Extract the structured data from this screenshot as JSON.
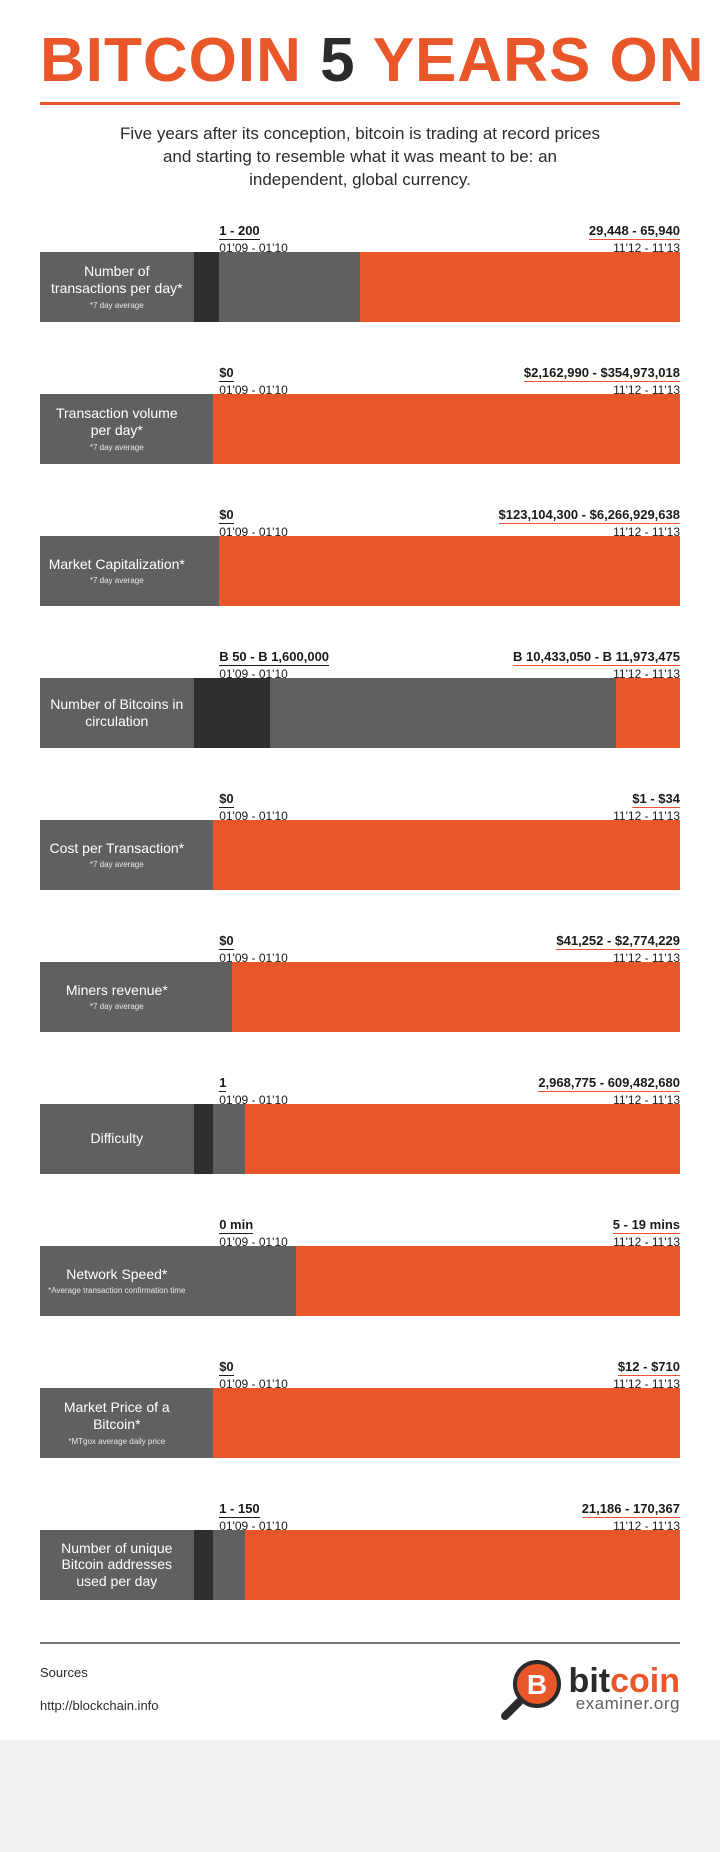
{
  "colors": {
    "orange": "#e8562a",
    "dark": "#2e302f",
    "gray": "#5e615f",
    "text": "#2b2b2b",
    "background": "#ffffff"
  },
  "title": {
    "w1": "BITCOIN",
    "w2": "5",
    "w3": "YEARS ON"
  },
  "subtitle": "Five years after its conception, bitcoin is trading at record prices and starting to resemble what it was meant to be: an independent, global currency.",
  "metrics": [
    {
      "label": "Number of transactions per day*",
      "note": "*7 day average",
      "label_pct": 24,
      "left": {
        "value": "1 - 200",
        "date": "01'09 - 01'10",
        "pos_pct": 28
      },
      "right": {
        "value": "29,448 - 65,940",
        "date": "11'12 - 11'13",
        "pos_pct": 65
      },
      "segments": [
        {
          "color": "dark",
          "start_pct": 24,
          "end_pct": 28
        },
        {
          "color": "gray",
          "start_pct": 28,
          "end_pct": 50
        },
        {
          "color": "orange",
          "start_pct": 50,
          "end_pct": 100
        }
      ]
    },
    {
      "label": "Transaction volume per day*",
      "note": "*7 day average",
      "label_pct": 24,
      "left": {
        "value": "$0",
        "date": "01'09 - 01'10",
        "pos_pct": 28
      },
      "right": {
        "value": "$2,162,990 - $354,973,018",
        "date": "11'12 - 11'13",
        "pos_pct": 55
      },
      "segments": [
        {
          "color": "gray",
          "start_pct": 24,
          "end_pct": 27
        },
        {
          "color": "orange",
          "start_pct": 27,
          "end_pct": 100
        }
      ]
    },
    {
      "label": "Market Capitalization*",
      "note": "*7 day average",
      "label_pct": 24,
      "left": {
        "value": "$0",
        "date": "01'09 - 01'10",
        "pos_pct": 28
      },
      "right": {
        "value": "$123,104,300 - $6,266,929,638",
        "date": "11'12 - 11'13",
        "pos_pct": 51
      },
      "segments": [
        {
          "color": "gray",
          "start_pct": 24,
          "end_pct": 28
        },
        {
          "color": "orange",
          "start_pct": 28,
          "end_pct": 100
        }
      ]
    },
    {
      "label": "Number of Bitcoins in circulation",
      "note": "",
      "label_pct": 24,
      "left": {
        "value": "B 50 - B 1,600,000",
        "date": "01'09 - 01'10",
        "pos_pct": 28
      },
      "right": {
        "value": "B 10,433,050 - B 11,973,475",
        "date": "11'12 - 11'13",
        "pos_pct": 55
      },
      "segments": [
        {
          "color": "dark",
          "start_pct": 24,
          "end_pct": 36
        },
        {
          "color": "gray",
          "start_pct": 36,
          "end_pct": 90
        },
        {
          "color": "orange",
          "start_pct": 90,
          "end_pct": 100
        }
      ]
    },
    {
      "label": "Cost per Transaction*",
      "note": "*7 day average",
      "label_pct": 24,
      "left": {
        "value": "$0",
        "date": "01'09 - 01'10",
        "pos_pct": 28
      },
      "right": {
        "value": "$1 - $34",
        "date": "11'12 - 11'13",
        "pos_pct": 82
      },
      "segments": [
        {
          "color": "gray",
          "start_pct": 24,
          "end_pct": 27
        },
        {
          "color": "orange",
          "start_pct": 27,
          "end_pct": 100
        }
      ]
    },
    {
      "label": "Miners revenue*",
      "note": "*7 day average",
      "label_pct": 24,
      "left": {
        "value": "$0",
        "date": "01'09 - 01'10",
        "pos_pct": 28
      },
      "right": {
        "value": "$41,252 - $2,774,229",
        "date": "11'12 - 11'13",
        "pos_pct": 65
      },
      "segments": [
        {
          "color": "gray",
          "start_pct": 24,
          "end_pct": 30
        },
        {
          "color": "orange",
          "start_pct": 30,
          "end_pct": 100
        }
      ]
    },
    {
      "label": "Difficulty",
      "note": "",
      "label_pct": 24,
      "left": {
        "value": "1",
        "date": "01'09 - 01'10",
        "pos_pct": 28
      },
      "right": {
        "value": "2,968,775 - 609,482,680",
        "date": "11'12 - 11'13",
        "pos_pct": 60
      },
      "segments": [
        {
          "color": "dark",
          "start_pct": 24,
          "end_pct": 27
        },
        {
          "color": "gray",
          "start_pct": 27,
          "end_pct": 32
        },
        {
          "color": "orange",
          "start_pct": 32,
          "end_pct": 100
        }
      ]
    },
    {
      "label": "Network Speed*",
      "note": "*Average transaction confirmation time",
      "label_pct": 24,
      "left": {
        "value": "0 min",
        "date": "01'09 - 01'10",
        "pos_pct": 28
      },
      "right": {
        "value": "5 - 19 mins",
        "date": "11'12 - 11'13",
        "pos_pct": 82
      },
      "segments": [
        {
          "color": "gray",
          "start_pct": 24,
          "end_pct": 40
        },
        {
          "color": "orange",
          "start_pct": 40,
          "end_pct": 100
        }
      ]
    },
    {
      "label": "Market Price of a Bitcoin*",
      "note": "*MTgox average daily price",
      "label_pct": 24,
      "left": {
        "value": "$0",
        "date": "01'09 - 01'10",
        "pos_pct": 28
      },
      "right": {
        "value": "$12 - $710",
        "date": "11'12 - 11'13",
        "pos_pct": 82
      },
      "segments": [
        {
          "color": "gray",
          "start_pct": 24,
          "end_pct": 27
        },
        {
          "color": "orange",
          "start_pct": 27,
          "end_pct": 100
        }
      ]
    },
    {
      "label": "Number of unique Bitcoin addresses used per day",
      "note": "",
      "label_pct": 24,
      "left": {
        "value": "1 - 150",
        "date": "01'09 - 01'10",
        "pos_pct": 28
      },
      "right": {
        "value": "21,186 - 170,367",
        "date": "11'12 - 11'13",
        "pos_pct": 70
      },
      "segments": [
        {
          "color": "dark",
          "start_pct": 24,
          "end_pct": 27
        },
        {
          "color": "gray",
          "start_pct": 27,
          "end_pct": 32
        },
        {
          "color": "orange",
          "start_pct": 32,
          "end_pct": 100
        }
      ]
    }
  ],
  "footer": {
    "sources_label": "Sources",
    "source_url": "http://blockchain.info",
    "logo": {
      "b": "bit",
      "c": "coin",
      "sub": "examiner.org"
    }
  }
}
